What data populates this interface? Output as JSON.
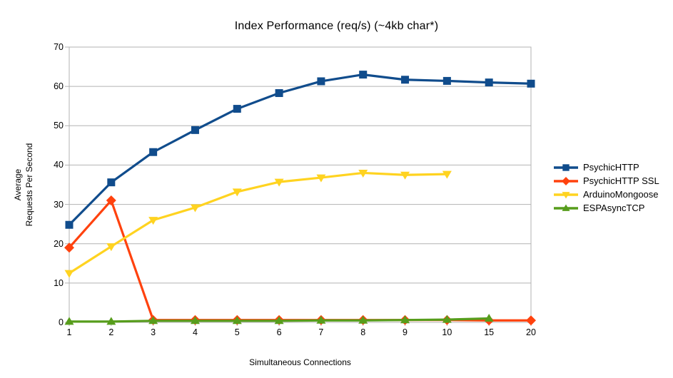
{
  "chart_data": {
    "type": "line",
    "title": "Index Performance (req/s) (~4kb char*)",
    "xlabel": "Simultaneous Connections",
    "ylabel_lines": [
      "Average",
      "Requests Per Second"
    ],
    "categories": [
      "1",
      "2",
      "3",
      "4",
      "5",
      "6",
      "7",
      "8",
      "9",
      "10",
      "15",
      "20"
    ],
    "ylim": [
      0,
      70
    ],
    "y_ticks": [
      0,
      10,
      20,
      30,
      40,
      50,
      60,
      70
    ],
    "grid": "horizontal",
    "legend_position": "right",
    "series": [
      {
        "name": "PsychicHTTP",
        "color": "#104C8C",
        "marker": "square",
        "values": [
          24.8,
          35.6,
          43.3,
          48.9,
          54.3,
          58.3,
          61.3,
          63.0,
          61.7,
          61.4,
          61.0,
          60.7
        ]
      },
      {
        "name": "PsychicHTTP SSL",
        "color": "#FF420E",
        "marker": "diamond",
        "values": [
          19.0,
          31.0,
          0.6,
          0.6,
          0.6,
          0.6,
          0.6,
          0.6,
          0.6,
          0.6,
          0.5,
          0.5
        ]
      },
      {
        "name": "ArduinoMongoose",
        "color": "#FFD320",
        "marker": "triangle-down",
        "values": [
          12.5,
          19.3,
          26.0,
          29.2,
          33.2,
          35.7,
          36.8,
          38.0,
          37.5,
          37.7,
          null,
          null
        ]
      },
      {
        "name": "ESPAsyncTCP",
        "color": "#579D1C",
        "marker": "triangle-up",
        "values": [
          0.2,
          0.2,
          0.4,
          0.4,
          0.4,
          0.4,
          0.5,
          0.5,
          0.6,
          0.7,
          1.0,
          null
        ]
      }
    ],
    "colors": {
      "grid": "#B3B3B3",
      "axis": "#B3B3B3",
      "text": "#000000",
      "background": "#FFFFFF"
    }
  }
}
